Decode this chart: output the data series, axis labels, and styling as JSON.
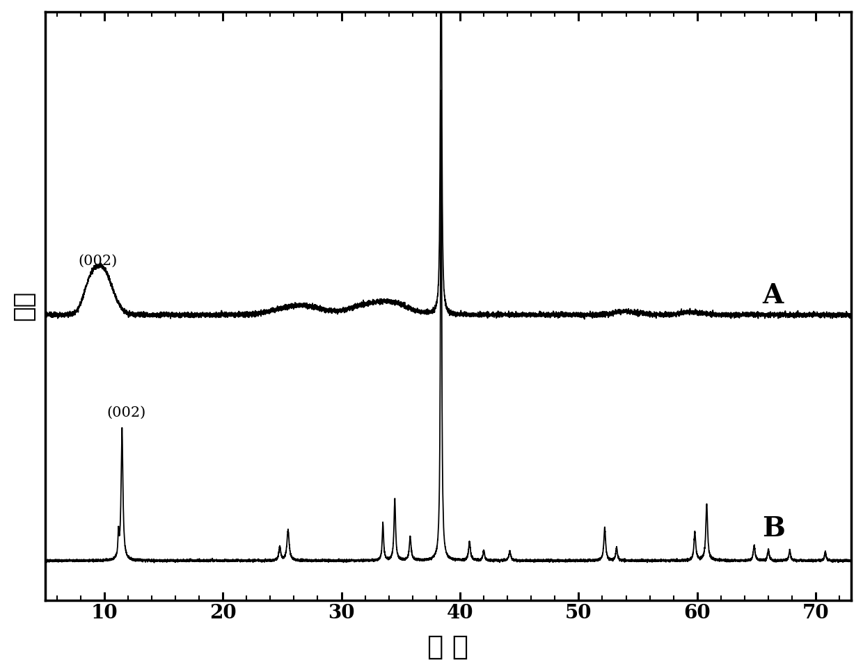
{
  "xlabel": "角 度",
  "ylabel": "强度",
  "xlim": [
    5,
    73
  ],
  "ylim": [
    -0.5,
    12.0
  ],
  "xticks": [
    10,
    20,
    30,
    40,
    50,
    60,
    70
  ],
  "label_A": "A",
  "label_B": "B",
  "annotation_A": "(002)",
  "annotation_B": "(002)",
  "background_color": "#ffffff",
  "line_color": "#000000",
  "axis_fontsize": 26,
  "tick_fontsize": 20
}
